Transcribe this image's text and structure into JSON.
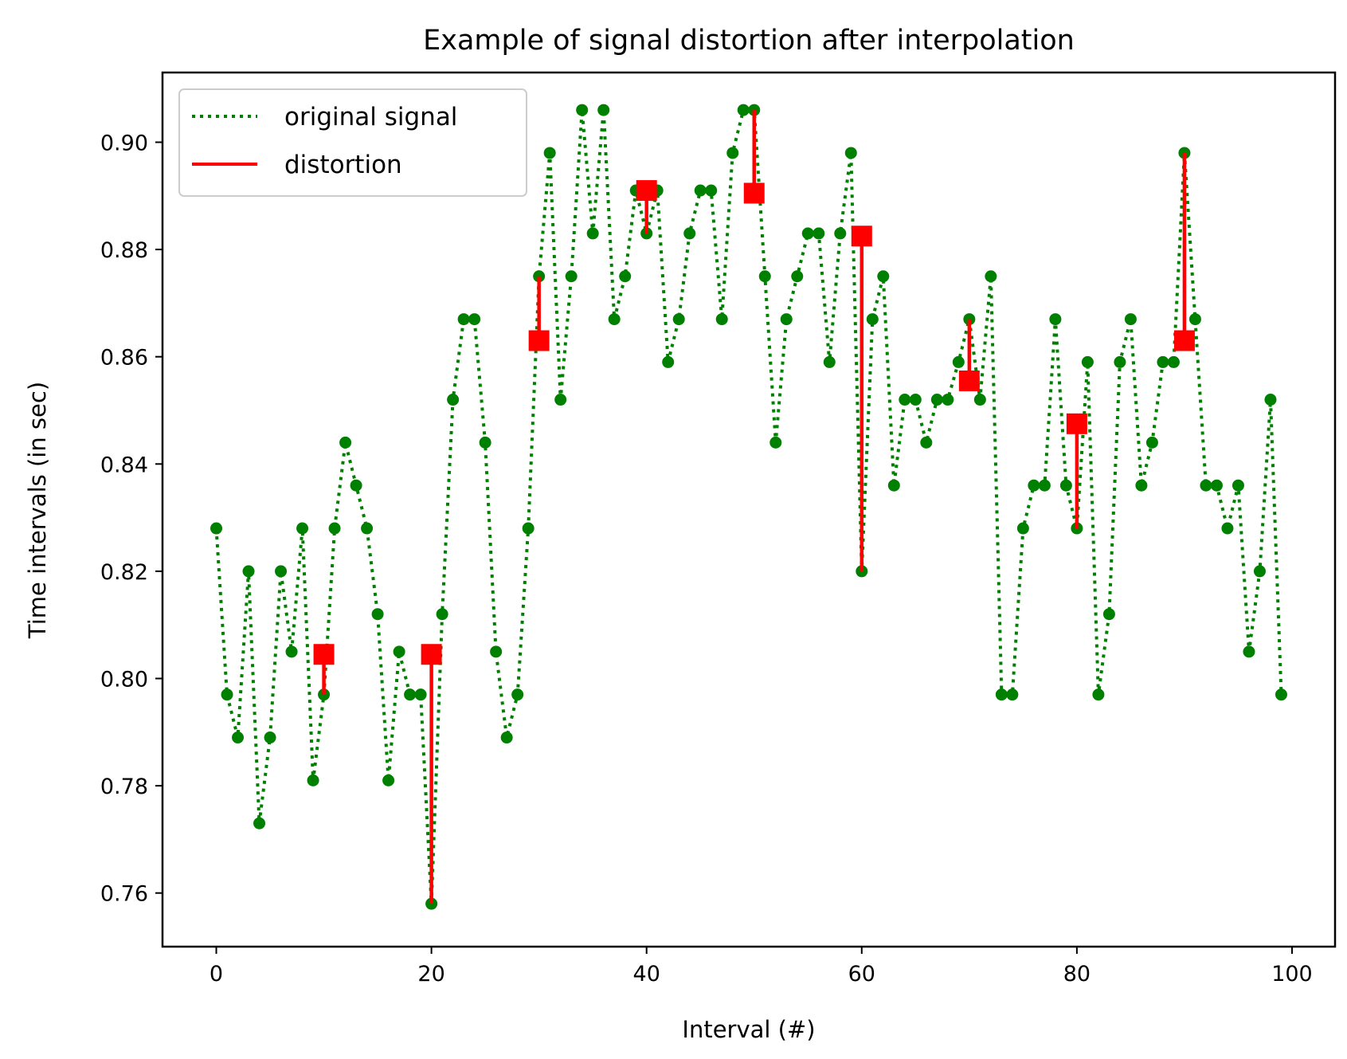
{
  "chart_data": {
    "type": "line",
    "title": "Example of signal distortion after interpolation",
    "xlabel": "Interval (#)",
    "ylabel": "Time intervals (in sec)",
    "xlim": [
      -5,
      104
    ],
    "ylim": [
      0.75,
      0.913
    ],
    "xticks": [
      0,
      20,
      40,
      60,
      80,
      100
    ],
    "yticks": [
      0.76,
      0.78,
      0.8,
      0.82,
      0.84,
      0.86,
      0.88,
      0.9
    ],
    "xtick_labels": [
      "0",
      "20",
      "40",
      "60",
      "80",
      "100"
    ],
    "ytick_labels": [
      "0.76",
      "0.78",
      "0.80",
      "0.82",
      "0.84",
      "0.86",
      "0.88",
      "0.90"
    ],
    "legend_position": "upper-left",
    "colors": {
      "signal": "#008000",
      "distortion": "#ff0000"
    },
    "series": [
      {
        "name": "original signal",
        "style": "dotted-with-markers",
        "x": [
          0,
          1,
          2,
          3,
          4,
          5,
          6,
          7,
          8,
          9,
          10,
          11,
          12,
          13,
          14,
          15,
          16,
          17,
          18,
          19,
          20,
          21,
          22,
          23,
          24,
          25,
          26,
          27,
          28,
          29,
          30,
          31,
          32,
          33,
          34,
          35,
          36,
          37,
          38,
          39,
          40,
          41,
          42,
          43,
          44,
          45,
          46,
          47,
          48,
          49,
          50,
          51,
          52,
          53,
          54,
          55,
          56,
          57,
          58,
          59,
          60,
          61,
          62,
          63,
          64,
          65,
          66,
          67,
          68,
          69,
          70,
          71,
          72,
          73,
          74,
          75,
          76,
          77,
          78,
          79,
          80,
          81,
          82,
          83,
          84,
          85,
          86,
          87,
          88,
          89,
          90,
          91,
          92,
          93,
          94,
          95,
          96,
          97,
          98,
          99
        ],
        "values": [
          0.828,
          0.797,
          0.789,
          0.82,
          0.773,
          0.789,
          0.82,
          0.805,
          0.828,
          0.781,
          0.797,
          0.828,
          0.844,
          0.836,
          0.828,
          0.812,
          0.781,
          0.805,
          0.797,
          0.797,
          0.758,
          0.812,
          0.852,
          0.867,
          0.867,
          0.844,
          0.805,
          0.789,
          0.797,
          0.828,
          0.875,
          0.898,
          0.852,
          0.875,
          0.906,
          0.883,
          0.906,
          0.867,
          0.875,
          0.891,
          0.883,
          0.891,
          0.859,
          0.867,
          0.883,
          0.891,
          0.891,
          0.867,
          0.898,
          0.906,
          0.906,
          0.875,
          0.844,
          0.867,
          0.875,
          0.883,
          0.883,
          0.859,
          0.883,
          0.898,
          0.82,
          0.867,
          0.875,
          0.836,
          0.852,
          0.852,
          0.844,
          0.852,
          0.852,
          0.859,
          0.867,
          0.852,
          0.875,
          0.797,
          0.797,
          0.828,
          0.836,
          0.836,
          0.867,
          0.836,
          0.828,
          0.859,
          0.797,
          0.812,
          0.859,
          0.867,
          0.836,
          0.844,
          0.859,
          0.859,
          0.898,
          0.867,
          0.836,
          0.836,
          0.828,
          0.836,
          0.805,
          0.82,
          0.852,
          0.797
        ]
      },
      {
        "name": "distortion",
        "style": "solid-with-square-markers",
        "x": [
          10,
          20,
          30,
          40,
          50,
          60,
          70,
          80,
          90
        ],
        "interpolated": [
          0.8045,
          0.8045,
          0.863,
          0.891,
          0.8905,
          0.8825,
          0.8555,
          0.8475,
          0.863
        ],
        "original": [
          0.797,
          0.758,
          0.875,
          0.883,
          0.906,
          0.82,
          0.867,
          0.828,
          0.898
        ]
      }
    ]
  }
}
